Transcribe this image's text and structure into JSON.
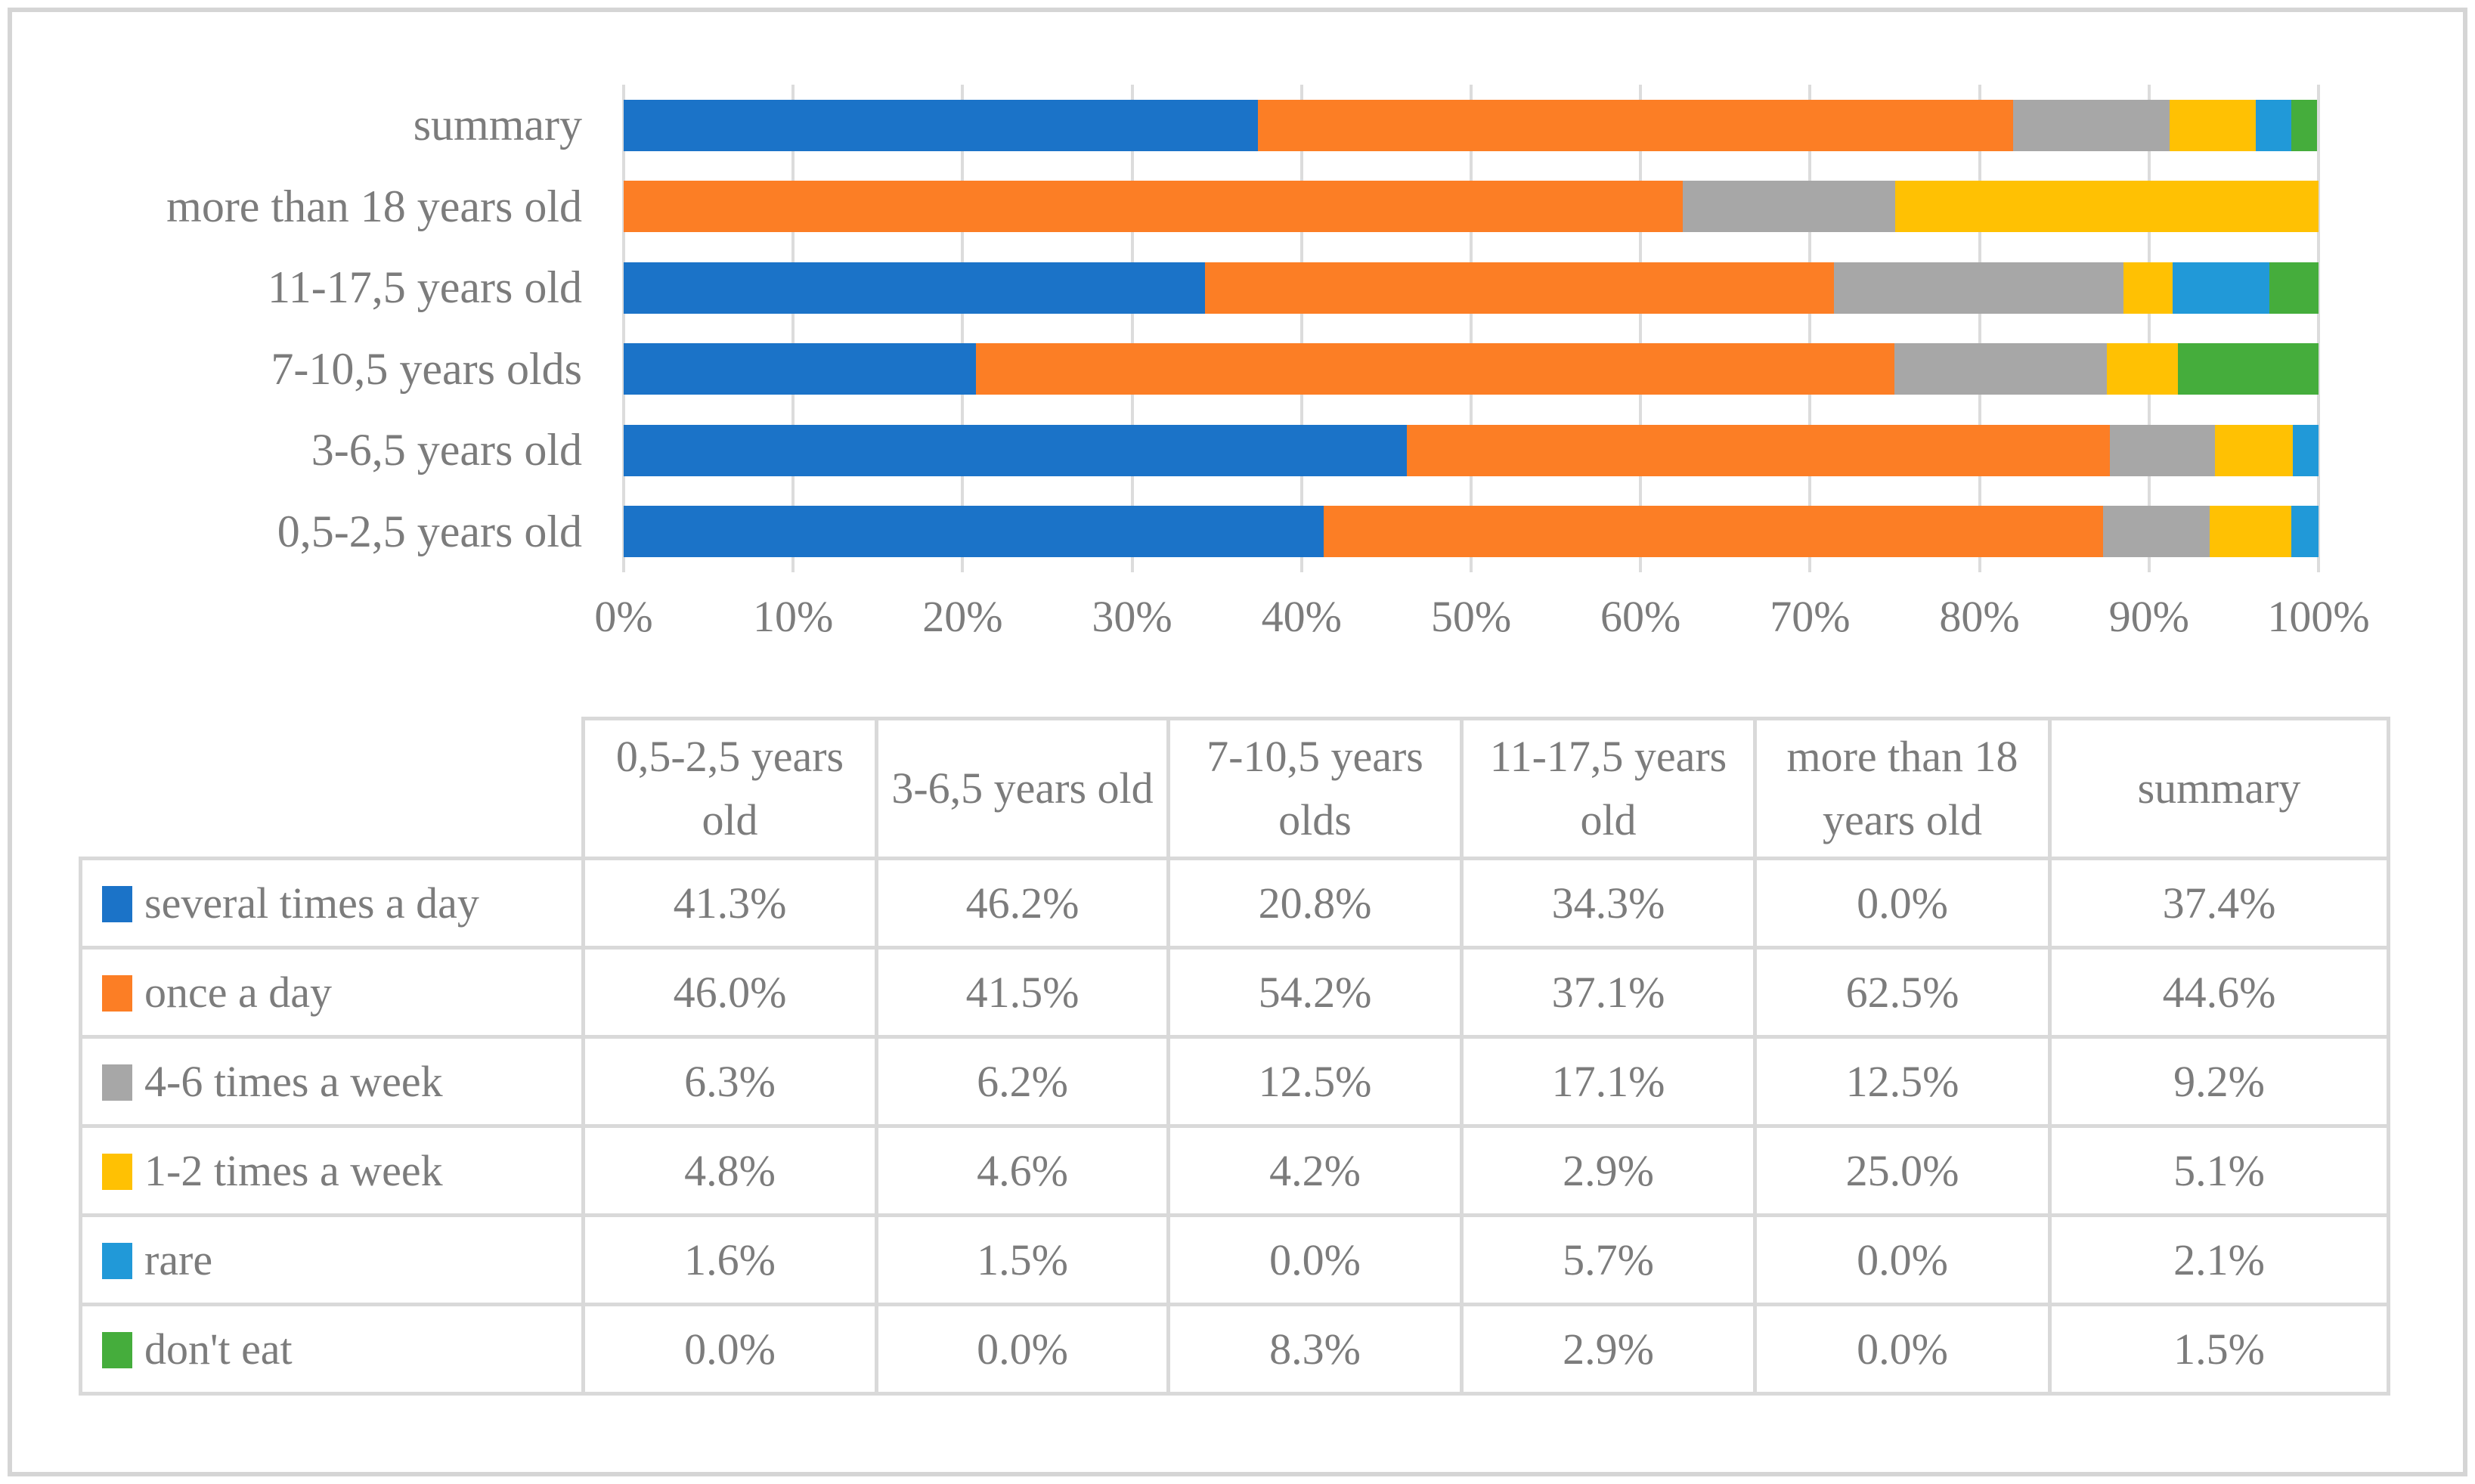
{
  "figure": {
    "background": "#FFFFFF",
    "frame_border_color": "#D5D5D5",
    "text_color": "#7C7C7C",
    "gridline_color": "#DCDCDC",
    "table_border_color": "#D9D9D9"
  },
  "chart_data": {
    "type": "bar",
    "orientation": "horizontal",
    "stacked": true,
    "unit": "percent",
    "title": "",
    "xlabel": "",
    "ylabel": "",
    "grid": true,
    "x_axis": {
      "min": 0,
      "max": 100,
      "tick_step": 10,
      "tick_labels": [
        "0%",
        "10%",
        "20%",
        "30%",
        "40%",
        "50%",
        "60%",
        "70%",
        "80%",
        "90%",
        "100%"
      ]
    },
    "categories_top_to_bottom": [
      "summary",
      "more than 18 years old",
      "11-17,5 years old",
      "7-10,5 years olds",
      "3-6,5 years old",
      "0,5-2,5 years old"
    ],
    "series": [
      {
        "name": "several times a day",
        "color": "#1B73C8",
        "values": {
          "0,5-2,5 years old": 41.3,
          "3-6,5 years old": 46.2,
          "7-10,5 years olds": 20.8,
          "11-17,5 years old": 34.3,
          "more than 18 years old": 0.0,
          "summary": 37.4
        }
      },
      {
        "name": "once a day",
        "color": "#FC7E25",
        "values": {
          "0,5-2,5 years old": 46.0,
          "3-6,5 years old": 41.5,
          "7-10,5 years olds": 54.2,
          "11-17,5 years old": 37.1,
          "more than 18 years old": 62.5,
          "summary": 44.6
        }
      },
      {
        "name": "4-6 times a week",
        "color": "#A7A7A7",
        "values": {
          "0,5-2,5 years old": 6.3,
          "3-6,5 years old": 6.2,
          "7-10,5 years olds": 12.5,
          "11-17,5 years old": 17.1,
          "more than 18 years old": 12.5,
          "summary": 9.2
        }
      },
      {
        "name": "1-2 times a week",
        "color": "#FFC103",
        "values": {
          "0,5-2,5 years old": 4.8,
          "3-6,5 years old": 4.6,
          "7-10,5 years olds": 4.2,
          "11-17,5 years old": 2.9,
          "more than 18 years old": 25.0,
          "summary": 5.1
        }
      },
      {
        "name": "rare",
        "color": "#2199D8",
        "values": {
          "0,5-2,5 years old": 1.6,
          "3-6,5 years old": 1.5,
          "7-10,5 years olds": 0.0,
          "11-17,5 years old": 5.7,
          "more than 18 years old": 0.0,
          "summary": 2.1
        }
      },
      {
        "name": "don't eat",
        "color": "#45AD3C",
        "values": {
          "0,5-2,5 years old": 0.0,
          "3-6,5 years old": 0.0,
          "7-10,5 years olds": 8.3,
          "11-17,5 years old": 2.9,
          "more than 18 years old": 0.0,
          "summary": 1.5
        }
      }
    ]
  },
  "table": {
    "column_headers": [
      "0,5-2,5 years old",
      "3-6,5 years old",
      "7-10,5 years olds",
      "11-17,5 years old",
      "more than 18 years old",
      "summary"
    ],
    "rows": [
      {
        "label": "several times a day",
        "swatch_color": "#1B73C8",
        "values": [
          "41.3%",
          "46.2%",
          "20.8%",
          "34.3%",
          "0.0%",
          "37.4%"
        ]
      },
      {
        "label": "once a day",
        "swatch_color": "#FC7E25",
        "values": [
          "46.0%",
          "41.5%",
          "54.2%",
          "37.1%",
          "62.5%",
          "44.6%"
        ]
      },
      {
        "label": "4-6 times a week",
        "swatch_color": "#A7A7A7",
        "values": [
          "6.3%",
          "6.2%",
          "12.5%",
          "17.1%",
          "12.5%",
          "9.2%"
        ]
      },
      {
        "label": "1-2 times a week",
        "swatch_color": "#FFC103",
        "values": [
          "4.8%",
          "4.6%",
          "4.2%",
          "2.9%",
          "25.0%",
          "5.1%"
        ]
      },
      {
        "label": "rare",
        "swatch_color": "#2199D8",
        "values": [
          "1.6%",
          "1.5%",
          "0.0%",
          "5.7%",
          "0.0%",
          "2.1%"
        ]
      },
      {
        "label": "don't eat",
        "swatch_color": "#45AD3C",
        "values": [
          "0.0%",
          "0.0%",
          "8.3%",
          "2.9%",
          "0.0%",
          "1.5%"
        ]
      }
    ]
  }
}
